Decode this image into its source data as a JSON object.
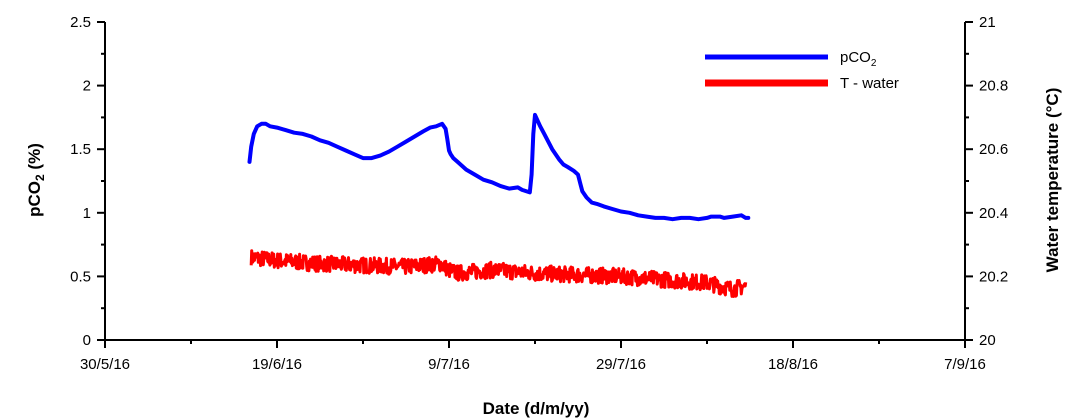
{
  "chart_data": {
    "type": "line",
    "title": "",
    "xlabel": "Date (d/m/yy)",
    "ylabel": {
      "main": "pCO",
      "sub": "2",
      "suffix": " (%)"
    },
    "y2label": "Water temperature (°C)",
    "x_ticks": [
      "30/5/16",
      "19/6/16",
      "9/7/16",
      "29/7/16",
      "18/8/16",
      "7/9/16"
    ],
    "x_tick_days": [
      0,
      20,
      40,
      60,
      80,
      100
    ],
    "y_ticks": [
      "0",
      "0.5",
      "1",
      "1.5",
      "2",
      "2.5"
    ],
    "y2_ticks": [
      "20",
      "20.2",
      "20.4",
      "20.6",
      "20.8",
      "21"
    ],
    "ylim": [
      0,
      2.5
    ],
    "y2lim": [
      20,
      21
    ],
    "x_unit": "days after 30/5/16",
    "xlim": [
      0,
      100
    ],
    "legend_position": "top-right",
    "grid": false,
    "series": [
      {
        "name": "pCO2",
        "legend": {
          "main": "pCO",
          "sub": "2"
        },
        "axis": "left",
        "color": "#0000ff",
        "x": [
          16.8,
          17.0,
          17.3,
          17.7,
          18.2,
          18.7,
          19.2,
          20,
          21,
          22,
          23,
          24,
          25,
          26,
          27,
          28,
          29,
          30,
          31,
          32,
          33,
          34,
          35,
          36,
          37,
          37.8,
          38.5,
          39.2,
          39.6,
          39.8,
          40.0,
          40.2,
          40.5,
          41,
          41.5,
          42,
          43,
          44,
          45,
          46,
          47,
          48,
          48.5,
          49.4,
          49.6,
          49.8,
          50.0,
          50.2,
          50.6,
          51,
          52,
          52.8,
          53.3,
          53.8,
          54.5,
          55,
          55.3,
          55.5,
          56,
          56.6,
          57.2,
          58,
          59,
          60,
          61,
          62,
          63,
          64,
          65,
          66,
          67,
          68,
          69,
          70,
          70.5,
          71,
          71.5,
          72,
          73,
          74,
          74.5,
          74.8
        ],
        "y": [
          1.4,
          1.52,
          1.62,
          1.68,
          1.7,
          1.7,
          1.68,
          1.67,
          1.65,
          1.63,
          1.62,
          1.6,
          1.57,
          1.55,
          1.52,
          1.49,
          1.46,
          1.43,
          1.43,
          1.45,
          1.48,
          1.52,
          1.56,
          1.6,
          1.64,
          1.67,
          1.68,
          1.7,
          1.66,
          1.58,
          1.49,
          1.46,
          1.43,
          1.4,
          1.37,
          1.34,
          1.3,
          1.26,
          1.24,
          1.21,
          1.19,
          1.2,
          1.18,
          1.16,
          1.3,
          1.62,
          1.77,
          1.74,
          1.68,
          1.63,
          1.5,
          1.42,
          1.38,
          1.36,
          1.33,
          1.3,
          1.22,
          1.17,
          1.12,
          1.08,
          1.07,
          1.05,
          1.03,
          1.01,
          1.0,
          0.98,
          0.97,
          0.96,
          0.96,
          0.95,
          0.96,
          0.96,
          0.95,
          0.96,
          0.97,
          0.97,
          0.97,
          0.96,
          0.97,
          0.98,
          0.96,
          0.96
        ]
      },
      {
        "name": "T - water",
        "legend": {
          "main": "T - water",
          "sub": ""
        },
        "axis": "right",
        "color": "#ff0000",
        "x": [
          17,
          20,
          25,
          30,
          35,
          39,
          40,
          41,
          45,
          50,
          55,
          60,
          65,
          70,
          73,
          74.5
        ],
        "y": [
          20.26,
          20.25,
          20.24,
          20.235,
          20.23,
          20.24,
          20.22,
          20.21,
          20.22,
          20.21,
          20.205,
          20.2,
          20.19,
          20.18,
          20.16,
          20.17
        ]
      }
    ]
  }
}
